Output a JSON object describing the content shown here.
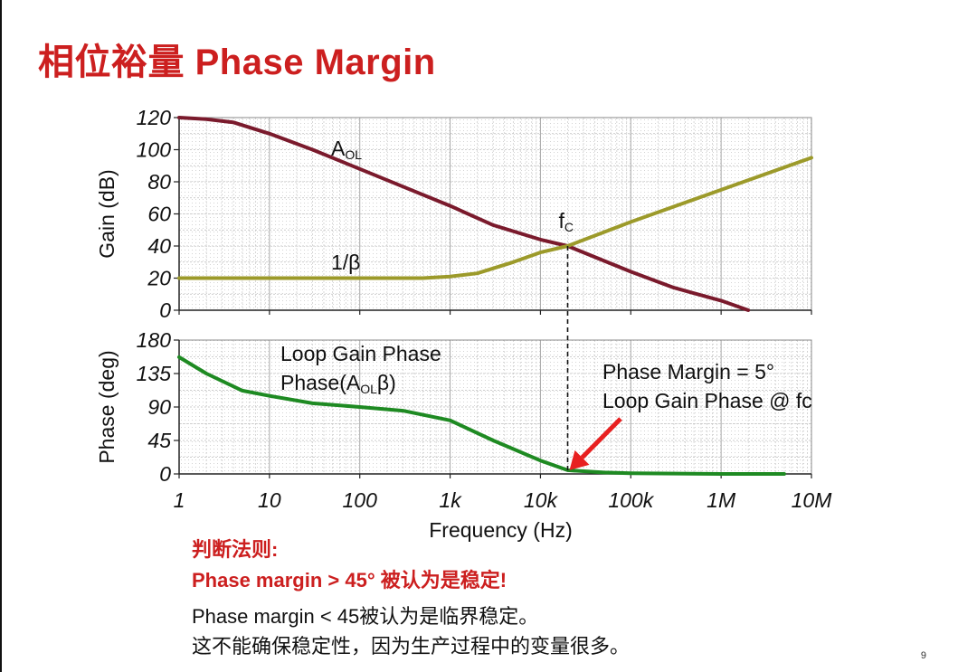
{
  "slide": {
    "title": "相位裕量 Phase Margin",
    "rule_heading": "判断法则:",
    "rule_main": "Phase margin > 45° 被认为是稳定!",
    "note1": "Phase margin < 45被认为是临界稳定。",
    "note2": "这不能确保稳定性，因为生产过程中的变量很多。",
    "page_number": "9"
  },
  "chart_data": [
    {
      "type": "line",
      "name": "gain",
      "ylabel": "Gain (dB)",
      "ylim": [
        0,
        120
      ],
      "yticks": [
        "0",
        "20",
        "40",
        "60",
        "80",
        "100",
        "120"
      ],
      "x_scale": "log",
      "xlim": [
        1,
        10000000
      ],
      "grid": true,
      "series": [
        {
          "name": "AOL",
          "label_main": "A",
          "label_sub": "OL",
          "color": "#7a1a2c",
          "points": [
            [
              1,
              120
            ],
            [
              2,
              119
            ],
            [
              4,
              117
            ],
            [
              10,
              110
            ],
            [
              30,
              100
            ],
            [
              100,
              88
            ],
            [
              300,
              77
            ],
            [
              1000,
              65
            ],
            [
              3000,
              53
            ],
            [
              10000,
              44
            ],
            [
              20000,
              40
            ],
            [
              100000,
              24
            ],
            [
              300000,
              14
            ],
            [
              1000000,
              6
            ],
            [
              2000000,
              0
            ]
          ]
        },
        {
          "name": "1/β",
          "label_main": "1/β",
          "color": "#9c9a2a",
          "points": [
            [
              1,
              20
            ],
            [
              10,
              20
            ],
            [
              100,
              20
            ],
            [
              500,
              20
            ],
            [
              1000,
              21
            ],
            [
              2000,
              23
            ],
            [
              5000,
              30
            ],
            [
              10000,
              36
            ],
            [
              20000,
              40
            ],
            [
              100000,
              55
            ],
            [
              1000000,
              75
            ],
            [
              10000000,
              95
            ]
          ]
        }
      ],
      "annotations": [
        {
          "label_main": "f",
          "label_sub": "C",
          "x": 20000,
          "y": 40
        }
      ]
    },
    {
      "type": "line",
      "name": "phase",
      "ylabel": "Phase (deg)",
      "ylim": [
        0,
        180
      ],
      "yticks": [
        "0",
        "45",
        "90",
        "135",
        "180"
      ],
      "x_scale": "log",
      "xlim": [
        1,
        10000000
      ],
      "xticks": [
        "1",
        "10",
        "100",
        "1k",
        "10k",
        "100k",
        "1M",
        "10M"
      ],
      "xlabel": "Frequency (Hz)",
      "grid": true,
      "series": [
        {
          "name": "Loop Gain Phase",
          "color": "#1e8a22",
          "points": [
            [
              1,
              157
            ],
            [
              2,
              135
            ],
            [
              5,
              112
            ],
            [
              10,
              105
            ],
            [
              30,
              95
            ],
            [
              100,
              90
            ],
            [
              300,
              85
            ],
            [
              1000,
              72
            ],
            [
              3000,
              45
            ],
            [
              10000,
              18
            ],
            [
              20000,
              5
            ],
            [
              50000,
              2
            ],
            [
              100000,
              1
            ],
            [
              1000000,
              0
            ],
            [
              5000000,
              0
            ]
          ]
        }
      ],
      "legend": {
        "line1": "Loop Gain Phase",
        "line2_pre": "Phase(A",
        "line2_sub": "OL",
        "line2_post": "β)"
      },
      "annotations": [
        {
          "line1": "Phase Margin = 5°",
          "line2": "Loop Gain Phase @ fc",
          "arrow_to_x": 20000,
          "arrow_to_y": 5,
          "color": "#e82020"
        }
      ]
    }
  ]
}
